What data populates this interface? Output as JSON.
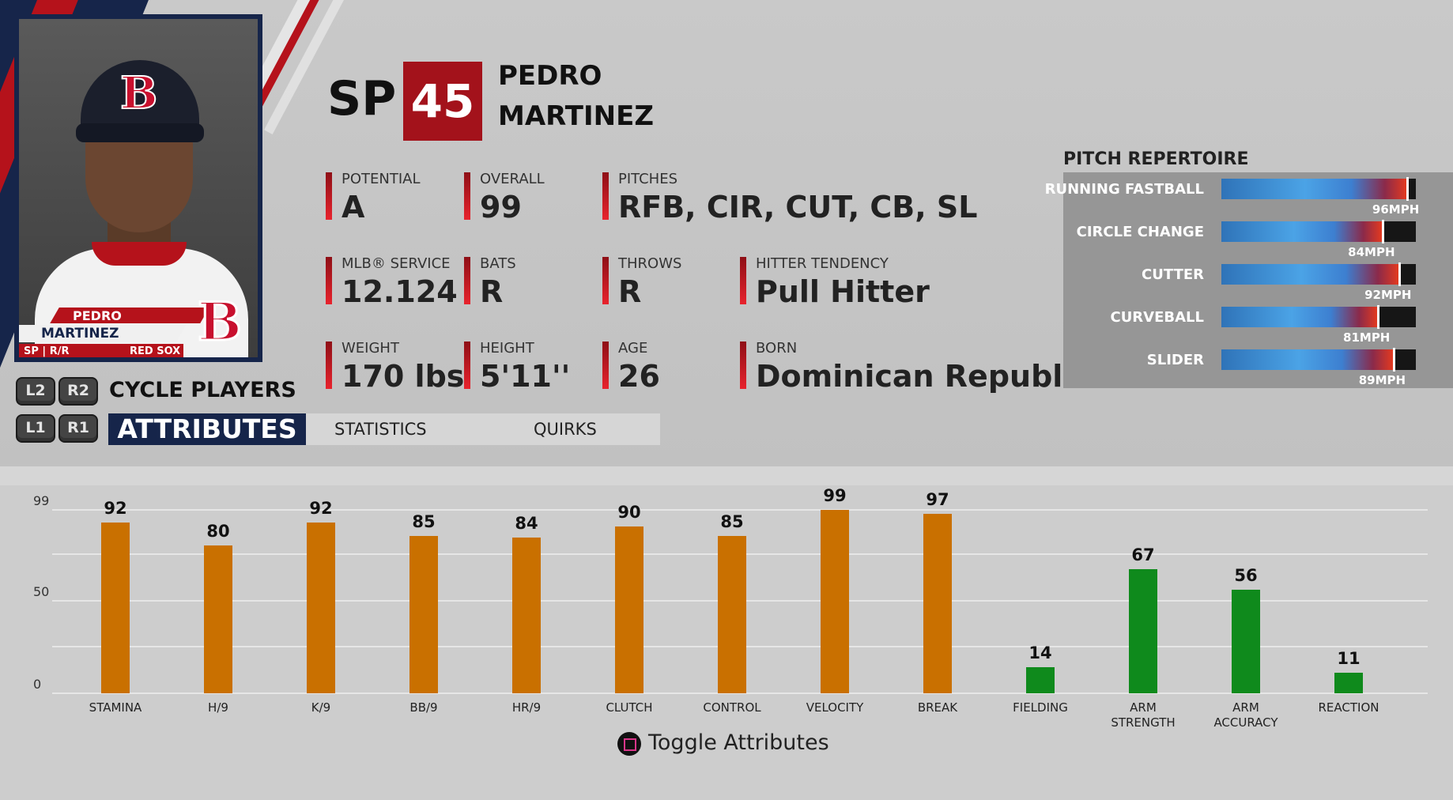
{
  "player": {
    "position": "SP",
    "overall_badge": "45",
    "first_name": "PEDRO",
    "last_name": "MARTINEZ",
    "card": {
      "first_name": "PEDRO",
      "last_name": "MARTINEZ",
      "pos_bats_throws": "SP | R/R",
      "team": "RED SOX",
      "logo_letter": "B"
    }
  },
  "info": [
    {
      "label": "POTENTIAL",
      "value": "A"
    },
    {
      "label": "OVERALL",
      "value": "99"
    },
    {
      "label": "PITCHES",
      "value": "RFB, CIR, CUT, CB, SL"
    },
    {
      "label": "MLB® SERVICE",
      "value": "12.124"
    },
    {
      "label": "BATS",
      "value": "R"
    },
    {
      "label": "THROWS",
      "value": "R"
    },
    {
      "label": "HITTER TENDENCY",
      "value": "Pull Hitter"
    },
    {
      "label": "WEIGHT",
      "value": "170 lbs"
    },
    {
      "label": "HEIGHT",
      "value": "5'11''"
    },
    {
      "label": "AGE",
      "value": "26"
    },
    {
      "label": "BORN",
      "value": "Dominican Republic"
    }
  ],
  "repertoire": {
    "title": "PITCH REPERTOIRE",
    "pitches": [
      {
        "name": "RUNNING FASTBALL",
        "speed": "96MPH",
        "fill": 0.955
      },
      {
        "name": "CIRCLE CHANGE",
        "speed": "84MPH",
        "fill": 0.83
      },
      {
        "name": "CUTTER",
        "speed": "92MPH",
        "fill": 0.915
      },
      {
        "name": "CURVEBALL",
        "speed": "81MPH",
        "fill": 0.805
      },
      {
        "name": "SLIDER",
        "speed": "89MPH",
        "fill": 0.885
      }
    ]
  },
  "controls": {
    "cycle_label": "CYCLE PLAYERS",
    "buttons": {
      "l2": "L2",
      "r2": "R2",
      "l1": "L1",
      "r1": "R1"
    }
  },
  "tabs": {
    "active": "ATTRIBUTES",
    "statistics": "STATISTICS",
    "quirks": "QUIRKS"
  },
  "footer": {
    "toggle_label": "Toggle Attributes"
  },
  "colors": {
    "pitching": "#c97000",
    "fielding": "#0f8a1c",
    "accent_red": "#a3121b",
    "navy": "#16254a"
  },
  "chart_data": {
    "type": "bar",
    "yticks": [
      "99",
      "50",
      "0"
    ],
    "ylim": [
      0,
      99
    ],
    "categories": [
      "STAMINA",
      "H/9",
      "K/9",
      "BB/9",
      "HR/9",
      "CLUTCH",
      "CONTROL",
      "VELOCITY",
      "BREAK",
      "FIELDING",
      "ARM STRENGTH",
      "ARM ACCURACY",
      "REACTION"
    ],
    "values": [
      92,
      80,
      92,
      85,
      84,
      90,
      85,
      99,
      97,
      14,
      67,
      56,
      11
    ],
    "groups": [
      "pitching",
      "pitching",
      "pitching",
      "pitching",
      "pitching",
      "pitching",
      "pitching",
      "pitching",
      "pitching",
      "fielding",
      "fielding",
      "fielding",
      "fielding"
    ]
  }
}
